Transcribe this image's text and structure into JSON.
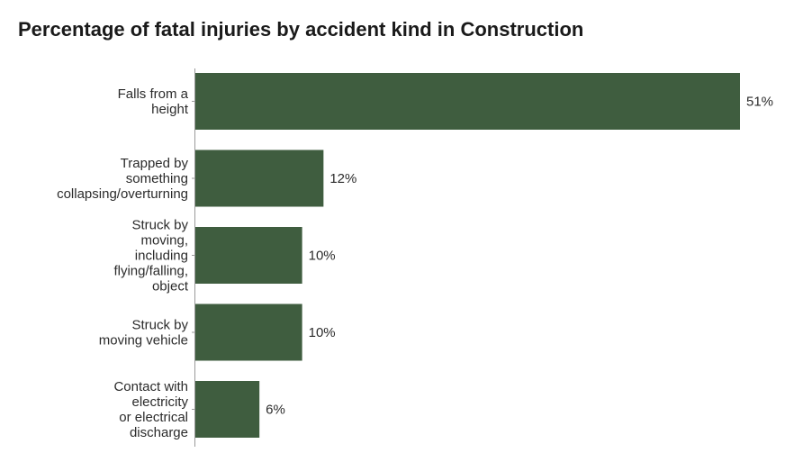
{
  "chart_data": {
    "type": "bar",
    "orientation": "horizontal",
    "title": "Percentage of fatal injuries by accident kind in Construction",
    "xlabel": "",
    "ylabel": "",
    "categories": [
      "Falls from a height",
      "Trapped by something collapsing/overturning",
      "Struck by moving, including flying/falling, object",
      "Struck by moving vehicle",
      "Contact with electricity or electrical discharge"
    ],
    "category_lines": [
      [
        "Falls from a",
        "height"
      ],
      [
        "Trapped by",
        "something",
        "collapsing/overturning"
      ],
      [
        "Struck by",
        "moving,",
        "including",
        "flying/falling,",
        "object"
      ],
      [
        "Struck by",
        "moving vehicle"
      ],
      [
        "Contact with",
        "electricity",
        "or electrical",
        "discharge"
      ]
    ],
    "values": [
      51,
      12,
      10,
      10,
      6
    ],
    "value_labels": [
      "51%",
      "12%",
      "10%",
      "10%",
      "6%"
    ],
    "unit": "%",
    "bar_color": "#3f5d3f",
    "grid": false,
    "legend": "none"
  }
}
